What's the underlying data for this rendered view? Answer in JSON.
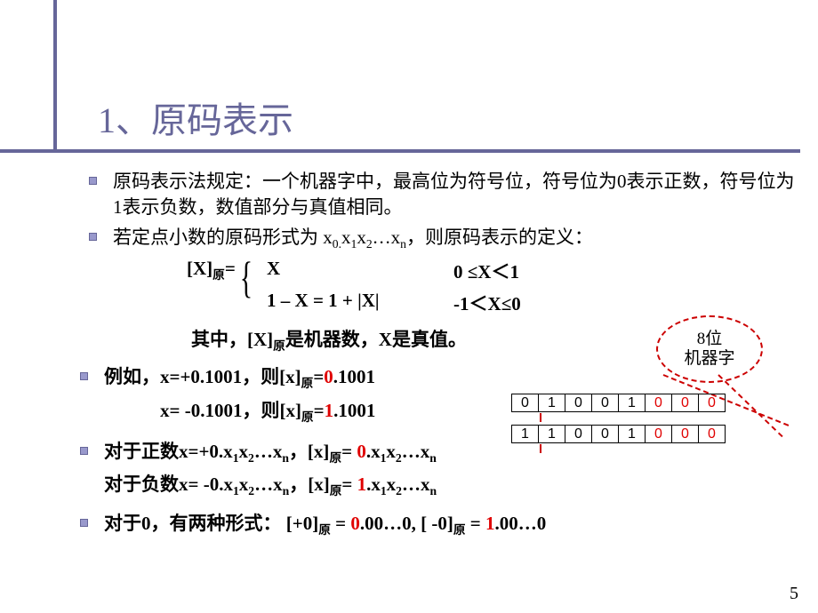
{
  "title": "1、原码表示",
  "bullets": {
    "b1": "原码表示法规定：一个机器字中，最高位为符号位，符号位为0表示正数，符号位为1表示负数，数值部分与真值相同。",
    "b2_pre": "若定点小数的原码形式为 x",
    "b2_post": "，则原码表示的定义：",
    "seq_indices": [
      "0.",
      "1",
      "2",
      "n"
    ]
  },
  "formula": {
    "lhs_pre": "[X]",
    "lhs_sub": "原",
    "lhs_eq": "=",
    "case1_expr": "X",
    "case1_cond": "0 ≤X＜1",
    "case2_expr": "1 – X = 1 + |X|",
    "case2_cond": "-1＜X≤0",
    "where_pre": "其中，[X]",
    "where_sub": "原",
    "where_post": "是机器数，X是真值。"
  },
  "callout": {
    "line1": "8位",
    "line2": "机器字"
  },
  "example": {
    "l1a": "例如，x=+0.1001，则[x]",
    "l1sub": "原",
    "l1b": "=",
    "l1red": "0",
    "l1c": ".1001",
    "l2a": "x= -0.1001，则[x]",
    "l2sub": "原",
    "l2b": "=",
    "l2red": "1",
    "l2c": ".1001"
  },
  "bitrows": {
    "r1": [
      "0",
      "1",
      "0",
      "0",
      "1"
    ],
    "r2": [
      "1",
      "1",
      "0",
      "0",
      "1"
    ],
    "pad": [
      "0",
      "0",
      "0"
    ],
    "pad_color": "#e00000"
  },
  "rules": {
    "pos_a": "对于正数x=+0.x",
    "pos_b": "，[x]",
    "pos_sub": "原",
    "pos_c": "= ",
    "pos_red": "0",
    "pos_d": ".x",
    "neg_a": "对于负数x= -0.x",
    "neg_b": "，[x]",
    "neg_sub": "原",
    "neg_c": "= ",
    "neg_red": "1",
    "neg_d": ".x"
  },
  "zero": {
    "a": "对于0，有两种形式：  [+0]",
    "sub1": "原",
    "b": " = ",
    "r1": "0",
    "c": ".00…0,     [ -0]",
    "sub2": "原",
    "d": " = ",
    "r2": "1",
    "e": ".00…0"
  },
  "pagenum": "5",
  "colors": {
    "accent": "#666699",
    "red": "#e00000"
  }
}
